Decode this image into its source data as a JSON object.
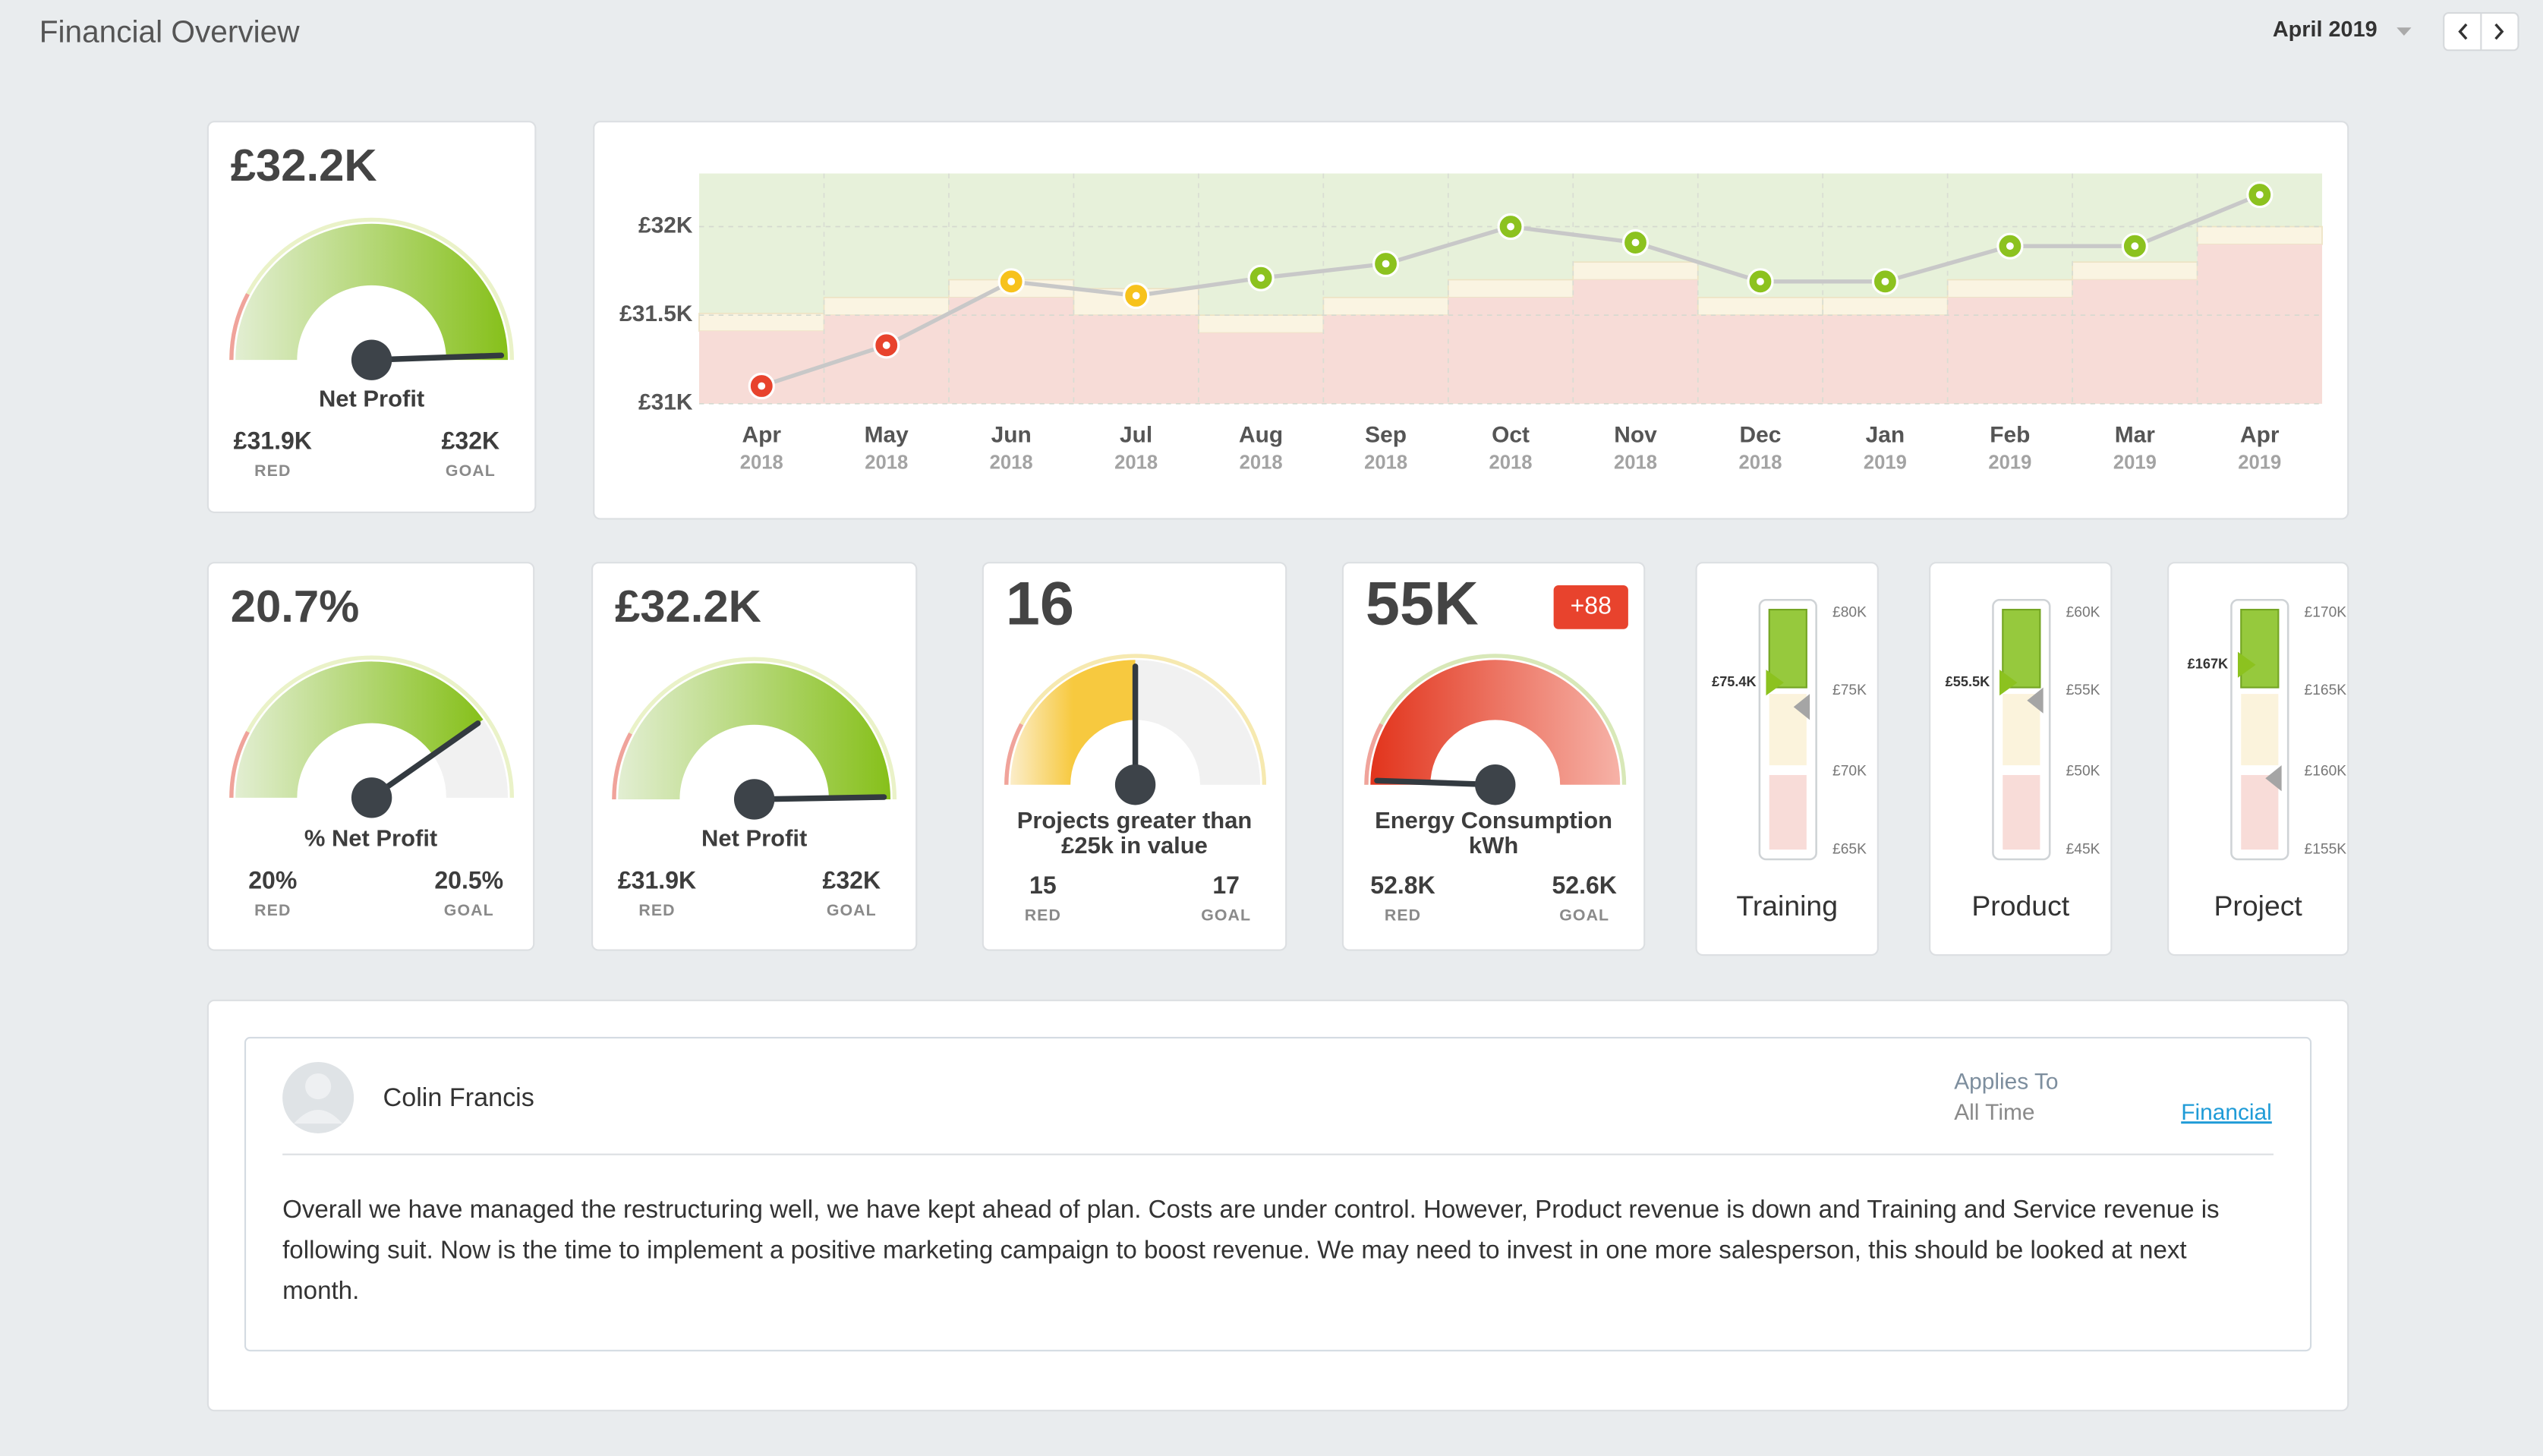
{
  "header": {
    "title": "Financial Overview",
    "period": "April 2019"
  },
  "trend_chart": {
    "type": "line",
    "categories": [
      "Apr",
      "May",
      "Jun",
      "Jul",
      "Aug",
      "Sep",
      "Oct",
      "Nov",
      "Dec",
      "Jan",
      "Feb",
      "Mar",
      "Apr"
    ],
    "years": [
      "2018",
      "2018",
      "2018",
      "2018",
      "2018",
      "2018",
      "2018",
      "2018",
      "2018",
      "2019",
      "2019",
      "2019",
      "2019"
    ],
    "values": [
      31.1,
      31.33,
      31.69,
      31.61,
      31.71,
      31.79,
      32.0,
      31.91,
      31.69,
      31.69,
      31.89,
      31.89,
      32.18
    ],
    "point_colors": [
      "#e8432d",
      "#e8432d",
      "#f7c21c",
      "#f7c21c",
      "#8cc21f",
      "#8cc21f",
      "#8cc21f",
      "#8cc21f",
      "#8cc21f",
      "#8cc21f",
      "#8cc21f",
      "#8cc21f",
      "#8cc21f"
    ],
    "red": [
      31.41,
      31.5,
      31.6,
      31.5,
      31.4,
      31.5,
      31.6,
      31.7,
      31.5,
      31.5,
      31.6,
      31.7,
      31.9
    ],
    "goal": [
      31.51,
      31.6,
      31.7,
      31.65,
      31.5,
      31.6,
      31.7,
      31.8,
      31.6,
      31.6,
      31.7,
      31.8,
      32.0
    ],
    "ylim": [
      31,
      32.3
    ],
    "yticks": [
      {
        "value": 31,
        "label": "£31K"
      },
      {
        "value": 31.5,
        "label": "£31.5K"
      },
      {
        "value": 32,
        "label": "£32K"
      }
    ],
    "line_color": "#c8c8c8",
    "grid": true
  },
  "gauges": [
    {
      "value": "£32.2K",
      "label": [
        "Net Profit"
      ],
      "red_value": "£31.9K",
      "red_caption": "RED",
      "goal_value": "£32K",
      "goal_caption": "GOAL"
    },
    {
      "value": "20.7%",
      "label": [
        "% Net Profit"
      ],
      "red_value": "20%",
      "red_caption": "RED",
      "goal_value": "20.5%",
      "goal_caption": "GOAL"
    },
    {
      "value": "£32.2K",
      "label": [
        "Net Profit"
      ],
      "red_value": "£31.9K",
      "red_caption": "RED",
      "goal_value": "£32K",
      "goal_caption": "GOAL"
    },
    {
      "value": "16",
      "label": [
        "Projects greater than",
        "£25k in value"
      ],
      "red_value": "15",
      "red_caption": "RED",
      "goal_value": "17",
      "goal_caption": "GOAL"
    },
    {
      "value": "55K",
      "badge": "+88",
      "label": [
        "Energy Consumption",
        "kWh"
      ],
      "red_value": "52.8K",
      "red_caption": "RED",
      "goal_value": "52.6K",
      "goal_caption": "GOAL"
    }
  ],
  "bullets": [
    {
      "name": "Training",
      "value": "£75.4K",
      "ticks": [
        "£80K",
        "£75K",
        "£70K",
        "£65K"
      ]
    },
    {
      "name": "Product",
      "value": "£55.5K",
      "ticks": [
        "£60K",
        "£55K",
        "£50K",
        "£45K"
      ]
    },
    {
      "name": "Project",
      "value": "£167K",
      "ticks": [
        "£170K",
        "£165K",
        "£160K",
        "£155K"
      ]
    }
  ],
  "comment": {
    "author": "Colin Francis",
    "applies_to_label": "Applies To",
    "applies_to_value": "All Time",
    "link": "Financial",
    "body_lines": [
      "Overall we have managed the restructuring well, we have kept ahead of plan. Costs are under control. However, Product revenue is down and Training and Service revenue is",
      "following suit. Now is the time to implement a positive marketing campaign to boost revenue. We may need to invest in one more salesperson, this should be looked at next",
      "month."
    ]
  }
}
